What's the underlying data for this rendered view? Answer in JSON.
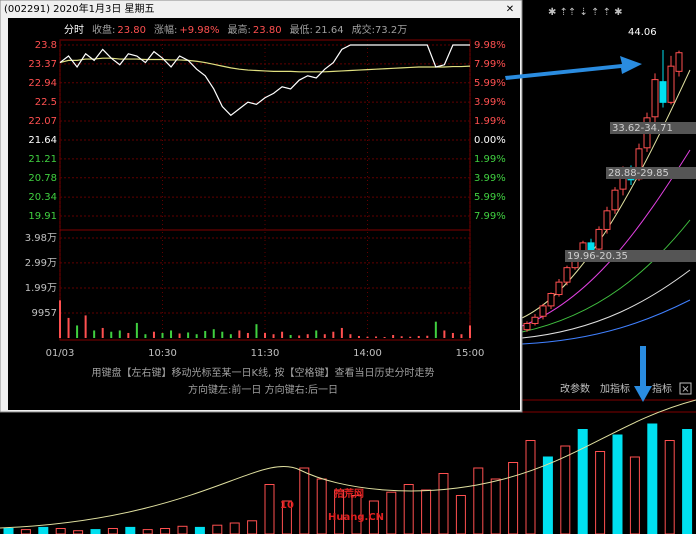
{
  "background": {
    "candles": [
      [
        17.0,
        17.6,
        17.8,
        16.8
      ],
      [
        17.6,
        18.2,
        18.5,
        17.4
      ],
      [
        18.3,
        19.3,
        19.5,
        18.0
      ],
      [
        19.3,
        20.5,
        20.6,
        19.0
      ],
      [
        20.4,
        21.6,
        21.9,
        20.2
      ],
      [
        21.6,
        23.0,
        23.2,
        21.3
      ],
      [
        23.0,
        24.1,
        24.4,
        22.8
      ],
      [
        24.2,
        25.4,
        25.6,
        24.0
      ],
      [
        25.4,
        24.6,
        25.8,
        24.3
      ],
      [
        24.8,
        26.7,
        27.0,
        24.6
      ],
      [
        26.7,
        28.5,
        28.9,
        26.3
      ],
      [
        28.6,
        30.5,
        30.8,
        28.2
      ],
      [
        30.6,
        32.4,
        32.8,
        30.0
      ],
      [
        32.3,
        31.5,
        32.9,
        31.0
      ],
      [
        31.6,
        34.5,
        35.0,
        31.4
      ],
      [
        34.6,
        37.5,
        38.0,
        34.2
      ],
      [
        37.6,
        41.2,
        41.8,
        37.0
      ],
      [
        41.0,
        39.0,
        44.06,
        38.5
      ],
      [
        39.0,
        42.5,
        43.5,
        38.8
      ],
      [
        42.0,
        43.8,
        44.0,
        41.5
      ]
    ],
    "candle_ylim": [
      16,
      46
    ],
    "high_label": "44.06",
    "range_labels": [
      "33.62-34.71",
      "28.88-29.85",
      "19.96-20.35"
    ],
    "volume": [
      5,
      4,
      6,
      5,
      3,
      4,
      5,
      6,
      4,
      5,
      7,
      6,
      8,
      10,
      12,
      45,
      30,
      60,
      50,
      40,
      35,
      30,
      38,
      45,
      40,
      55,
      35,
      60,
      50,
      65,
      85,
      70,
      80,
      95,
      75,
      90,
      70,
      100,
      85,
      95
    ],
    "volume_colors": [
      "#00e0f0",
      "#ff5050",
      "#00e0f0",
      "#ff5050",
      "#ff5050",
      "#00e0f0",
      "#ff5050",
      "#00e0f0",
      "#ff5050",
      "#ff5050",
      "#ff5050",
      "#00e0f0",
      "#ff5050",
      "#ff5050",
      "#ff5050",
      "#ff5050",
      "#ff5050",
      "#ff5050",
      "#ff5050",
      "#ff5050",
      "#ff5050",
      "#ff5050",
      "#ff5050",
      "#ff5050",
      "#ff5050",
      "#ff5050",
      "#ff5050",
      "#ff5050",
      "#ff5050",
      "#ff5050",
      "#ff5050",
      "#00e0f0",
      "#ff5050",
      "#00e0f0",
      "#ff5050",
      "#00e0f0",
      "#ff5050",
      "#00e0f0",
      "#ff5050",
      "#00e0f0"
    ],
    "volume_ylim": [
      0,
      100
    ],
    "toolbar": [
      "改参数",
      "加指标",
      "指标"
    ],
    "watermark": {
      "number": "10",
      "name": "拾荒网",
      "site": "Huang.CN"
    }
  },
  "popup": {
    "title": "(002291) 2020年1月3日 星期五",
    "header": [
      {
        "text": "分时",
        "color": "#ffffff"
      },
      {
        "text": "收盘:",
        "color": "#a0a0a0"
      },
      {
        "text": "23.80",
        "color": "#ff5050"
      },
      {
        "text": "涨幅:",
        "color": "#a0a0a0"
      },
      {
        "text": "+9.98%",
        "color": "#ff5050"
      },
      {
        "text": "最高:",
        "color": "#a0a0a0"
      },
      {
        "text": "23.80",
        "color": "#ff5050"
      },
      {
        "text": "最低:",
        "color": "#a0a0a0"
      },
      {
        "text": "21.64",
        "color": "#a0a0a0"
      },
      {
        "text": "成交:73.2万",
        "color": "#a0a0a0"
      }
    ],
    "ylim": [
      19.91,
      23.8
    ],
    "yticks": [
      23.8,
      23.37,
      22.94,
      22.5,
      22.07,
      21.64,
      21.21,
      20.78,
      20.34,
      19.91
    ],
    "ytick_colors": [
      "#ff5050",
      "#ff5050",
      "#ff5050",
      "#ff5050",
      "#ff5050",
      "#ffffff",
      "#40d040",
      "#40d040",
      "#40d040",
      "#40d040"
    ],
    "pct_labels": [
      "9.98%",
      "7.99%",
      "5.99%",
      "3.99%",
      "1.99%",
      "0.00%",
      "1.99%",
      "3.99%",
      "5.99%",
      "7.99%"
    ],
    "price": [
      23.4,
      23.55,
      23.3,
      23.6,
      23.45,
      23.7,
      23.5,
      23.35,
      23.6,
      23.55,
      23.4,
      23.65,
      23.5,
      23.3,
      23.55,
      23.45,
      23.25,
      23.1,
      22.8,
      22.4,
      22.2,
      22.35,
      22.5,
      22.45,
      22.6,
      22.7,
      22.85,
      22.8,
      23.0,
      23.1,
      23.05,
      23.25,
      23.4,
      23.7,
      23.8,
      23.8,
      23.8,
      23.8,
      23.8,
      23.8,
      23.8,
      23.8,
      23.8,
      23.8,
      23.3,
      23.35,
      23.8,
      23.8,
      23.8
    ],
    "average": [
      23.4,
      23.45,
      23.45,
      23.48,
      23.48,
      23.5,
      23.5,
      23.48,
      23.48,
      23.48,
      23.47,
      23.47,
      23.47,
      23.46,
      23.46,
      23.45,
      23.43,
      23.4,
      23.36,
      23.32,
      23.28,
      23.25,
      23.23,
      23.22,
      23.21,
      23.2,
      23.2,
      23.2,
      23.19,
      23.19,
      23.19,
      23.19,
      23.2,
      23.21,
      23.22,
      23.23,
      23.24,
      23.25,
      23.26,
      23.27,
      23.28,
      23.29,
      23.3,
      23.3,
      23.3,
      23.3,
      23.31,
      23.31,
      23.32
    ],
    "volume": [
      15000,
      8000,
      5000,
      9000,
      3000,
      4000,
      2500,
      3000,
      2000,
      6000,
      1500,
      2500,
      2000,
      3000,
      1800,
      2200,
      1500,
      2800,
      3500,
      2500,
      1500,
      3000,
      2000,
      5500,
      2000,
      1500,
      2500,
      1200,
      1000,
      1500,
      3000,
      1500,
      2500,
      4000,
      1500,
      800,
      500,
      600,
      400,
      1200,
      700,
      500,
      800,
      900,
      6500,
      3000,
      2000,
      1500,
      5000
    ],
    "volume_ylim": [
      0,
      43000
    ],
    "volume_ticks": [
      {
        "value": 39800,
        "label": "3.98万"
      },
      {
        "value": 29900,
        "label": "2.99万"
      },
      {
        "value": 19900,
        "label": "1.99万"
      },
      9957
    ],
    "xlim": [
      0,
      48
    ],
    "xticks": [
      {
        "value": 0,
        "label": "01/03"
      },
      {
        "value": 12,
        "label": "10:30"
      },
      {
        "value": 24,
        "label": "11:30"
      },
      {
        "value": 36,
        "label": "14:00"
      },
      {
        "value": 48,
        "label": "15:00"
      }
    ],
    "hint_line1": "用键盘【左右键】移动光标至某一日K线, 按【空格键】查看当日历史分时走势",
    "hint_line2": "方向键左:前一日   方向键右:后一日"
  }
}
